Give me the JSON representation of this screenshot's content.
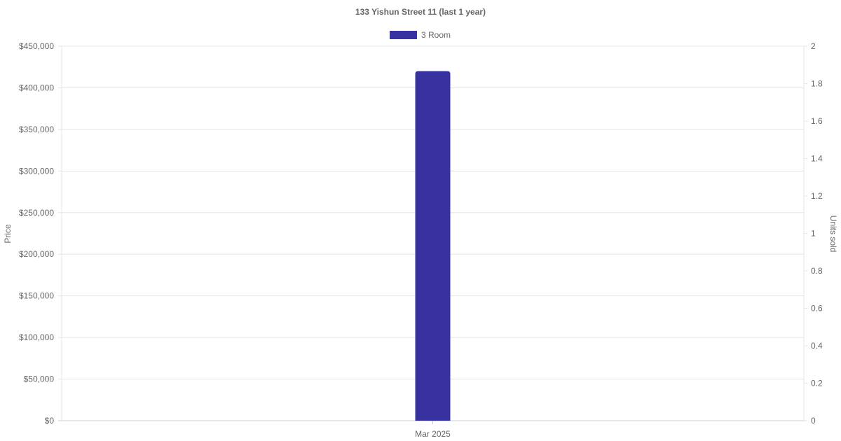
{
  "chart_data": {
    "type": "bar",
    "title": "133 Yishun Street 11 (last 1 year)",
    "categories": [
      "Mar 2025"
    ],
    "series": [
      {
        "name": "3 Room",
        "values": [
          420000
        ],
        "color": "#3832a0"
      }
    ],
    "ylabel": "Price",
    "ylim": [
      0,
      450000
    ],
    "yticks": [
      "$0",
      "$50,000",
      "$100,000",
      "$150,000",
      "$200,000",
      "$250,000",
      "$300,000",
      "$350,000",
      "$400,000",
      "$450,000"
    ],
    "y2label": "Units sold",
    "y2lim": [
      0,
      2
    ],
    "y2ticks": [
      "0",
      "0.2",
      "0.4",
      "0.6",
      "0.8",
      "1",
      "1.2",
      "1.4",
      "1.6",
      "1.8",
      "2"
    ],
    "grid": true,
    "legend": "top"
  }
}
